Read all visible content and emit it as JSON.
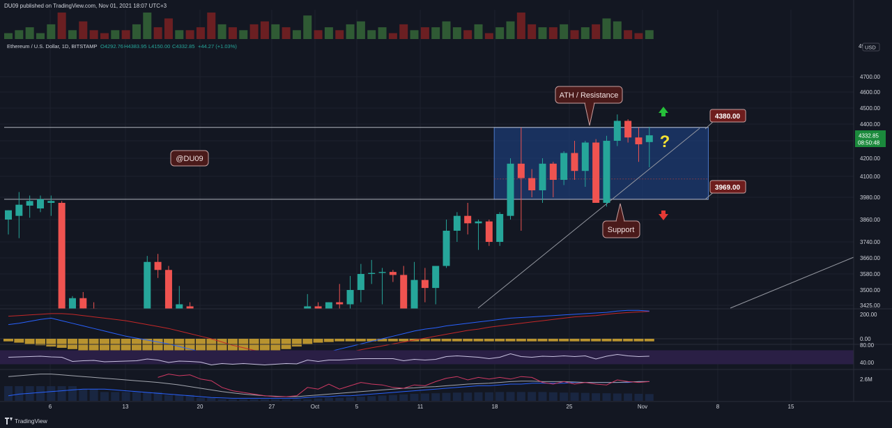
{
  "header": {
    "published": "DU09 published on TradingView.com, Nov 01, 2021 18:07 UTC+3"
  },
  "legend": {
    "symbol": "Ethereum / U.S. Dollar, 1D, BITSTAMP",
    "open": "O4292.76",
    "high": "H4383.95",
    "low": "L4150.00",
    "close": "C4332.85",
    "change": "+44.27 (+1.03%)"
  },
  "currency": "USD",
  "price_tag": {
    "price": "4332.85",
    "countdown": "08:50:48"
  },
  "annotations": {
    "watermark": "@DU09",
    "resistance_label": "ATH / Resistance",
    "support_label": "Support",
    "question": "?",
    "level_high": "4380.00",
    "level_low": "3969.00"
  },
  "footer": {
    "brand": "TradingView"
  },
  "colors": {
    "background": "#131722",
    "grid": "#1e222d",
    "up": "#26a69a",
    "down": "#ef5350",
    "box_fill": "#1c3d78",
    "box_stroke": "#4c78c8",
    "label_fill": "#6e1d1d",
    "rsi_band": "#2a1f45",
    "macd_fast": "#2962ff",
    "macd_slow": "#c62828",
    "macd_hist": "#b8932f"
  },
  "chart_data": [
    {
      "type": "candlestick",
      "y_ticks": [
        3425,
        3500,
        3580,
        3660,
        3740,
        3860,
        3980,
        4100,
        4200,
        4300,
        4400,
        4500,
        4600,
        4700
      ],
      "y_top_label": "4900",
      "x_ticks": [
        "6",
        "13",
        "20",
        "27",
        "Oct",
        "5",
        "11",
        "18",
        "25",
        "Nov",
        "8",
        "15"
      ],
      "horizontal_levels": [
        4380,
        3969
      ],
      "zone": {
        "from": 3969,
        "to": 4380,
        "start": 46,
        "end": 65
      },
      "candles": [
        {
          "o": 3860,
          "h": 3910,
          "l": 3780,
          "c": 3910
        },
        {
          "o": 3880,
          "h": 4010,
          "l": 3760,
          "c": 3940
        },
        {
          "o": 3935,
          "h": 3990,
          "l": 3870,
          "c": 3960
        },
        {
          "o": 3920,
          "h": 3990,
          "l": 3900,
          "c": 3970
        },
        {
          "o": 3950,
          "h": 3990,
          "l": 3880,
          "c": 3960
        },
        {
          "o": 3950,
          "h": 3960,
          "l": 3260,
          "c": 3350
        },
        {
          "o": 3350,
          "h": 3470,
          "l": 3210,
          "c": 3460
        },
        {
          "o": 3460,
          "h": 3490,
          "l": 3350,
          "c": 3410
        },
        {
          "o": 3410,
          "h": 3440,
          "l": 3260,
          "c": 3300
        },
        {
          "o": 3300,
          "h": 3370,
          "l": 3170,
          "c": 3260
        },
        {
          "o": 3260,
          "h": 3340,
          "l": 3250,
          "c": 3330
        },
        {
          "o": 3330,
          "h": 3380,
          "l": 3280,
          "c": 3300
        },
        {
          "o": 3300,
          "h": 3380,
          "l": 3270,
          "c": 3360
        },
        {
          "o": 3360,
          "h": 3670,
          "l": 3350,
          "c": 3640
        },
        {
          "o": 3640,
          "h": 3680,
          "l": 3560,
          "c": 3600
        },
        {
          "o": 3600,
          "h": 3620,
          "l": 3370,
          "c": 3400
        },
        {
          "o": 3400,
          "h": 3520,
          "l": 3300,
          "c": 3430
        },
        {
          "o": 3420,
          "h": 3440,
          "l": 3350,
          "c": 3380
        },
        {
          "o": 3380,
          "h": 3400,
          "l": 3280,
          "c": 3330
        },
        {
          "o": 3330,
          "h": 3350,
          "l": 3000,
          "c": 3060
        },
        {
          "o": 3060,
          "h": 3130,
          "l": 2940,
          "c": 3100
        },
        {
          "o": 3100,
          "h": 3150,
          "l": 2980,
          "c": 3000
        },
        {
          "o": 3000,
          "h": 3080,
          "l": 2850,
          "c": 3060
        },
        {
          "o": 3060,
          "h": 3120,
          "l": 2960,
          "c": 2990
        },
        {
          "o": 2990,
          "h": 3010,
          "l": 2760,
          "c": 2850
        },
        {
          "o": 2850,
          "h": 2950,
          "l": 2740,
          "c": 2930
        },
        {
          "o": 2930,
          "h": 3060,
          "l": 2840,
          "c": 2900
        },
        {
          "o": 2900,
          "h": 2980,
          "l": 2800,
          "c": 2960
        },
        {
          "o": 2960,
          "h": 3480,
          "l": 2940,
          "c": 3420
        },
        {
          "o": 3420,
          "h": 3440,
          "l": 3280,
          "c": 3320
        },
        {
          "o": 3320,
          "h": 3440,
          "l": 3290,
          "c": 3440
        },
        {
          "o": 3440,
          "h": 3530,
          "l": 3380,
          "c": 3430
        },
        {
          "o": 3430,
          "h": 3570,
          "l": 3400,
          "c": 3500
        },
        {
          "o": 3500,
          "h": 3630,
          "l": 3440,
          "c": 3580
        },
        {
          "o": 3580,
          "h": 3650,
          "l": 3530,
          "c": 3585
        },
        {
          "o": 3585,
          "h": 3610,
          "l": 3430,
          "c": 3590
        },
        {
          "o": 3590,
          "h": 3600,
          "l": 3540,
          "c": 3575
        },
        {
          "o": 3575,
          "h": 3620,
          "l": 3390,
          "c": 3400
        },
        {
          "o": 3400,
          "h": 3640,
          "l": 3380,
          "c": 3550
        },
        {
          "o": 3550,
          "h": 3610,
          "l": 3440,
          "c": 3510
        },
        {
          "o": 3510,
          "h": 3620,
          "l": 3430,
          "c": 3620
        },
        {
          "o": 3620,
          "h": 3860,
          "l": 3610,
          "c": 3800
        },
        {
          "o": 3800,
          "h": 3900,
          "l": 3740,
          "c": 3880
        },
        {
          "o": 3880,
          "h": 3950,
          "l": 3780,
          "c": 3840
        },
        {
          "o": 3840,
          "h": 3860,
          "l": 3700,
          "c": 3850
        },
        {
          "o": 3850,
          "h": 3860,
          "l": 3720,
          "c": 3740
        },
        {
          "o": 3740,
          "h": 3900,
          "l": 3720,
          "c": 3890
        },
        {
          "o": 3880,
          "h": 4200,
          "l": 3860,
          "c": 4170
        },
        {
          "o": 4170,
          "h": 4380,
          "l": 3800,
          "c": 4090
        },
        {
          "o": 4090,
          "h": 4140,
          "l": 3980,
          "c": 4020
        },
        {
          "o": 4020,
          "h": 4200,
          "l": 3950,
          "c": 4170
        },
        {
          "o": 4170,
          "h": 4180,
          "l": 3980,
          "c": 4080
        },
        {
          "o": 4080,
          "h": 4240,
          "l": 4050,
          "c": 4230
        },
        {
          "o": 4230,
          "h": 4300,
          "l": 4080,
          "c": 4130
        },
        {
          "o": 4130,
          "h": 4300,
          "l": 4040,
          "c": 4290
        },
        {
          "o": 4290,
          "h": 4310,
          "l": 3950,
          "c": 3950
        },
        {
          "o": 3950,
          "h": 4330,
          "l": 3930,
          "c": 4300
        },
        {
          "o": 4300,
          "h": 4460,
          "l": 4270,
          "c": 4420
        },
        {
          "o": 4420,
          "h": 4430,
          "l": 4290,
          "c": 4320
        },
        {
          "o": 4320,
          "h": 4380,
          "l": 4180,
          "c": 4280
        },
        {
          "o": 4292.76,
          "h": 4383.95,
          "l": 4150,
          "c": 4332.85
        }
      ]
    },
    {
      "type": "bar",
      "name": "volume",
      "values": [
        2,
        3,
        4,
        2,
        5,
        9,
        3,
        6,
        3,
        2,
        3,
        3,
        5,
        9,
        4,
        7,
        3,
        3,
        4,
        9,
        5,
        4,
        3,
        5,
        6,
        5,
        4,
        3,
        8,
        3,
        4,
        3,
        5,
        6,
        3,
        4,
        2,
        5,
        3,
        4,
        4,
        6,
        4,
        3,
        5,
        2,
        4,
        6,
        9,
        5,
        4,
        4,
        5,
        3,
        4,
        5,
        7,
        6,
        3,
        2,
        3
      ]
    },
    {
      "type": "line",
      "name": "macd",
      "y_ticks": [
        "200.00",
        "0.00"
      ],
      "fast": [
        110,
        120,
        135,
        150,
        160,
        140,
        120,
        100,
        80,
        60,
        40,
        20,
        5,
        -10,
        -25,
        -40,
        -60,
        -80,
        -100,
        -120,
        -135,
        -150,
        -160,
        -165,
        -170,
        -165,
        -160,
        -150,
        -140,
        -120,
        -100,
        -80,
        -60,
        -40,
        -20,
        0,
        20,
        40,
        60,
        75,
        85,
        100,
        110,
        120,
        130,
        140,
        150,
        160,
        165,
        170,
        175,
        180,
        185,
        190,
        195,
        200,
        205,
        215,
        220,
        220,
        215
      ],
      "slow": [
        175,
        180,
        185,
        190,
        195,
        195,
        190,
        180,
        170,
        160,
        150,
        140,
        125,
        110,
        95,
        80,
        60,
        40,
        20,
        0,
        -25,
        -50,
        -70,
        -90,
        -100,
        -110,
        -120,
        -125,
        -130,
        -128,
        -120,
        -110,
        -100,
        -85,
        -70,
        -55,
        -40,
        -25,
        -10,
        5,
        20,
        35,
        50,
        65,
        75,
        90,
        100,
        110,
        120,
        130,
        140,
        150,
        160,
        170,
        175,
        180,
        190,
        198,
        203,
        208,
        212
      ],
      "hist": [
        -20,
        -30,
        -40,
        -50,
        -60,
        -70,
        -80,
        -90,
        -90,
        -90,
        -90,
        -90,
        -90,
        -90,
        -90,
        -90,
        -90,
        -90,
        -90,
        -90,
        -90,
        -90,
        -90,
        -90,
        -90,
        -90,
        -80,
        -60,
        -40,
        -30,
        -25,
        -20,
        -20,
        -20,
        -20,
        -20,
        -20,
        -20,
        -20,
        -20,
        -20,
        -20,
        -20,
        -20,
        -20,
        -20,
        -20,
        -20,
        -20,
        -20,
        -20,
        -20,
        -20,
        -20,
        -20,
        -20,
        -20,
        -20,
        -20,
        -20,
        -20
      ]
    },
    {
      "type": "line",
      "name": "rsi",
      "y_ticks": [
        "80.00",
        "40.00"
      ],
      "values": [
        60,
        61,
        62,
        63,
        61,
        60,
        48,
        50,
        51,
        47,
        48,
        49,
        50,
        55,
        52,
        45,
        49,
        48,
        46,
        38,
        42,
        40,
        42,
        40,
        38,
        40,
        42,
        41,
        52,
        48,
        52,
        52,
        54,
        56,
        56,
        56,
        56,
        50,
        54,
        52,
        54,
        62,
        64,
        62,
        60,
        56,
        60,
        70,
        62,
        60,
        63,
        62,
        64,
        62,
        64,
        55,
        63,
        68,
        64,
        62,
        63
      ]
    },
    {
      "type": "line",
      "name": "volume indicator",
      "y_ticks": [
        "2.6M"
      ],
      "values": [
        2.9,
        3.0,
        3.1,
        3.2,
        3.2,
        3.1,
        3.0,
        2.9,
        2.8,
        2.7,
        2.6,
        2.5,
        2.4,
        2.3,
        2.2,
        2.05,
        1.9,
        1.7,
        1.5,
        1.3,
        1.1,
        0.95,
        0.8,
        0.7,
        0.6,
        0.55,
        0.5,
        0.5,
        0.6,
        0.7,
        0.8,
        0.9,
        1.0,
        1.1,
        1.2,
        1.3,
        1.4,
        1.5,
        1.55,
        1.65,
        1.7,
        1.8,
        1.9,
        2.0,
        2.05,
        2.1,
        2.2,
        2.3,
        2.35,
        2.35,
        2.3,
        2.3,
        2.3,
        2.25,
        2.2,
        2.2,
        2.2,
        2.2,
        2.25,
        2.3,
        2.3
      ],
      "activity": [
        0.6,
        0.8,
        0.9,
        1.0,
        1.1,
        1.2,
        1.3,
        1.4,
        1.4,
        1.4,
        1.3,
        1.2,
        1.1,
        1.0,
        0.9,
        0.8,
        0.7,
        0.6,
        0.5,
        0.4,
        0.35,
        0.3,
        0.3,
        0.3,
        0.3,
        0.3,
        0.3,
        0.3,
        0.4,
        0.5,
        0.5,
        0.6,
        0.6,
        0.7,
        0.8,
        0.9,
        1.0,
        1.1,
        1.2,
        1.3,
        1.4,
        1.5,
        1.6,
        1.7,
        1.8,
        1.8,
        1.9,
        2.0,
        2.0,
        2.1,
        2.1,
        2.1,
        2.1,
        2.2,
        2.2,
        2.2,
        2.2,
        2.2,
        2.2,
        2.3,
        2.3
      ],
      "hist": [
        5,
        5,
        5,
        5,
        5,
        5,
        5,
        4,
        4,
        3,
        3,
        3,
        3,
        3,
        3,
        2,
        2,
        2,
        1,
        1,
        0.5,
        0.5,
        0.5,
        0.5,
        0.5,
        0.5,
        0.5,
        0.5,
        0.5,
        0.8,
        1,
        1,
        1.2,
        1.4,
        1.6,
        1.8,
        2,
        2.2,
        2.4,
        2.5,
        2.6,
        2.7,
        2.8,
        2.8,
        2.9,
        2.9,
        3,
        3,
        3,
        3,
        3,
        2.9,
        2.8,
        2.8,
        2.7,
        2.6,
        2.6,
        2.5,
        2.5,
        2.4,
        2.3
      ]
    }
  ]
}
